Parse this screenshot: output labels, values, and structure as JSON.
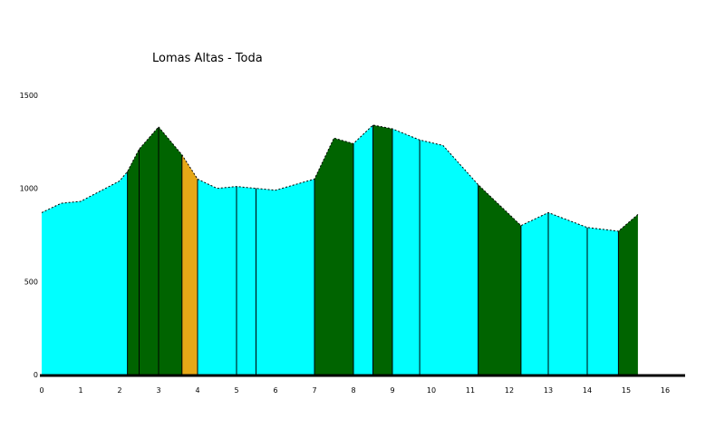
{
  "chart_data": {
    "type": "area",
    "title": "Lomas Altas - Toda",
    "xlabel": "",
    "ylabel": "",
    "xlim": [
      0,
      16
    ],
    "ylim": [
      0,
      1500
    ],
    "x_ticks": [
      "0",
      "1",
      "2",
      "3",
      "4",
      "5",
      "6",
      "7",
      "8",
      "9",
      "10",
      "11",
      "12",
      "13",
      "14",
      "15",
      "16"
    ],
    "y_ticks": [
      "0",
      "500",
      "1000",
      "1500"
    ],
    "grid": false,
    "legend": "none",
    "colors": {
      "flat": "#00ffff",
      "climb": "#006400",
      "steep": "#e6a817",
      "baseline": "#000000"
    },
    "profile": {
      "x": [
        0,
        0.5,
        1,
        2,
        2.2,
        2.5,
        3,
        3.6,
        4,
        4.5,
        5,
        5.5,
        6,
        7,
        7.5,
        8,
        8.5,
        9,
        9.7,
        10.3,
        11.2,
        12.3,
        13,
        14,
        14.8,
        15.3
      ],
      "y": [
        870,
        920,
        930,
        1040,
        1090,
        1210,
        1330,
        1180,
        1050,
        1000,
        1010,
        1000,
        990,
        1050,
        1270,
        1240,
        1340,
        1320,
        1260,
        1230,
        1020,
        800,
        870,
        790,
        770,
        860
      ]
    },
    "segments": [
      {
        "start": 0,
        "end": 2.2,
        "category": "flat"
      },
      {
        "start": 2.2,
        "end": 3.6,
        "category": "climb"
      },
      {
        "start": 3.6,
        "end": 4,
        "category": "steep"
      },
      {
        "start": 4,
        "end": 7,
        "category": "flat"
      },
      {
        "start": 7,
        "end": 8,
        "category": "climb"
      },
      {
        "start": 8,
        "end": 8.5,
        "category": "flat"
      },
      {
        "start": 8.5,
        "end": 9,
        "category": "climb"
      },
      {
        "start": 9,
        "end": 11.2,
        "category": "flat"
      },
      {
        "start": 11.2,
        "end": 12.3,
        "category": "climb"
      },
      {
        "start": 12.3,
        "end": 14.8,
        "category": "flat"
      },
      {
        "start": 14.8,
        "end": 15.3,
        "category": "climb"
      }
    ],
    "dividers": [
      2.5,
      3,
      5,
      5.5,
      8.5,
      9,
      9.7,
      11.2,
      13,
      14
    ]
  }
}
